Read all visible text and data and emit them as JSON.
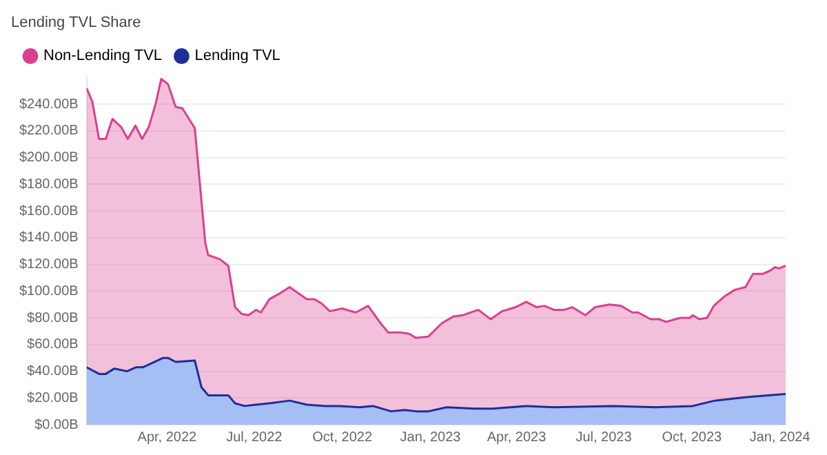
{
  "chart_data": {
    "type": "area",
    "title": "Lending TVL Share",
    "legend": "top left",
    "grid": "y",
    "marker": "none",
    "line_style": "solid",
    "xlim": [
      "2022-01-07",
      "2024-01-07"
    ],
    "xticks": [
      {
        "value": "2022-04-01",
        "label": "Apr, 2022"
      },
      {
        "value": "2022-07-01",
        "label": "Jul, 2022"
      },
      {
        "value": "2022-10-01",
        "label": "Oct, 2022"
      },
      {
        "value": "2023-01-01",
        "label": "Jan, 2023"
      },
      {
        "value": "2023-04-01",
        "label": "Apr, 2023"
      },
      {
        "value": "2023-07-01",
        "label": "Jul, 2023"
      },
      {
        "value": "2023-10-01",
        "label": "Oct, 2023"
      },
      {
        "value": "2024-01-01",
        "label": "Jan, 2024"
      }
    ],
    "ylim": [
      0,
      260
    ],
    "yticks": [
      {
        "value": 0,
        "label": "$0.00B"
      },
      {
        "value": 20,
        "label": "$20.00B"
      },
      {
        "value": 40,
        "label": "$40.00B"
      },
      {
        "value": 60,
        "label": "$60.00B"
      },
      {
        "value": 80,
        "label": "$80.00B"
      },
      {
        "value": 100,
        "label": "$100.00B"
      },
      {
        "value": 120,
        "label": "$120.00B"
      },
      {
        "value": 140,
        "label": "$140.00B"
      },
      {
        "value": 160,
        "label": "$160.00B"
      },
      {
        "value": 180,
        "label": "$180.00B"
      },
      {
        "value": 200,
        "label": "$200.00B"
      },
      {
        "value": 220,
        "label": "$220.00B"
      },
      {
        "value": 240,
        "label": "$240.00B"
      }
    ],
    "series": [
      {
        "name": "Non-Lending TVL",
        "color": "#d9408f",
        "x": [
          "2022-01-07",
          "2022-01-13",
          "2022-01-20",
          "2022-01-27",
          "2022-02-03",
          "2022-02-12",
          "2022-02-19",
          "2022-02-27",
          "2022-03-06",
          "2022-03-13",
          "2022-03-20",
          "2022-03-26",
          "2022-04-02",
          "2022-04-10",
          "2022-04-17",
          "2022-04-30",
          "2022-05-11",
          "2022-05-14",
          "2022-05-26",
          "2022-06-04",
          "2022-06-11",
          "2022-06-18",
          "2022-06-25",
          "2022-07-03",
          "2022-07-08",
          "2022-07-17",
          "2022-07-27",
          "2022-08-07",
          "2022-08-15",
          "2022-08-25",
          "2022-09-02",
          "2022-09-09",
          "2022-09-18",
          "2022-10-01",
          "2022-10-15",
          "2022-10-28",
          "2022-11-10",
          "2022-11-18",
          "2022-12-01",
          "2022-12-10",
          "2022-12-17",
          "2022-12-30",
          "2023-01-13",
          "2023-01-25",
          "2023-02-04",
          "2023-02-20",
          "2023-03-05",
          "2023-03-17",
          "2023-03-31",
          "2023-04-11",
          "2023-04-22",
          "2023-04-30",
          "2023-05-10",
          "2023-05-21",
          "2023-05-29",
          "2023-06-12",
          "2023-06-22",
          "2023-07-07",
          "2023-07-19",
          "2023-07-31",
          "2023-08-06",
          "2023-08-19",
          "2023-08-28",
          "2023-09-04",
          "2023-09-19",
          "2023-09-29",
          "2023-10-02",
          "2023-10-09",
          "2023-10-17",
          "2023-10-24",
          "2023-11-04",
          "2023-11-15",
          "2023-11-26",
          "2023-12-04",
          "2023-12-14",
          "2023-12-21",
          "2023-12-27",
          "2023-12-31",
          "2024-01-07"
        ],
        "values": [
          252,
          242,
          214,
          214,
          229,
          223,
          214,
          224,
          214,
          223,
          240,
          259,
          255,
          238,
          237,
          222,
          136,
          127,
          124,
          119,
          88,
          83,
          82,
          86,
          84,
          94,
          98,
          103,
          99,
          94,
          94,
          91,
          85,
          87,
          84,
          89,
          76,
          69,
          69,
          68,
          65,
          66,
          76,
          81,
          82,
          86,
          79,
          85,
          88,
          92,
          88,
          89,
          86,
          86,
          88,
          82,
          88,
          90,
          89,
          84,
          84,
          79,
          79,
          77,
          80,
          80,
          82,
          79,
          80,
          89,
          96,
          101,
          103,
          113,
          113,
          115,
          118,
          117,
          119
        ]
      },
      {
        "name": "Lending TVL",
        "color": "#1c2e99",
        "x": [
          "2022-01-07",
          "2022-01-20",
          "2022-01-27",
          "2022-02-05",
          "2022-02-18",
          "2022-02-28",
          "2022-03-07",
          "2022-03-28",
          "2022-04-02",
          "2022-04-10",
          "2022-04-30",
          "2022-05-07",
          "2022-05-14",
          "2022-06-04",
          "2022-06-11",
          "2022-06-21",
          "2022-07-03",
          "2022-07-17",
          "2022-08-07",
          "2022-08-25",
          "2022-09-13",
          "2022-09-28",
          "2022-10-19",
          "2022-11-02",
          "2022-11-21",
          "2022-12-05",
          "2022-12-17",
          "2022-12-30",
          "2023-01-18",
          "2023-02-16",
          "2023-03-07",
          "2023-04-11",
          "2023-05-10",
          "2023-07-11",
          "2023-08-24",
          "2023-10-02",
          "2023-10-25",
          "2023-11-19",
          "2023-12-04",
          "2024-01-07"
        ],
        "values": [
          43,
          38,
          38,
          42,
          40,
          43,
          43,
          50,
          50,
          47,
          48,
          28,
          22,
          22,
          16,
          14,
          15,
          16,
          18,
          15,
          14,
          14,
          13,
          14,
          10,
          11,
          10,
          10,
          13,
          12,
          12,
          14,
          13,
          14,
          13,
          14,
          18,
          20,
          21,
          23
        ]
      }
    ]
  }
}
